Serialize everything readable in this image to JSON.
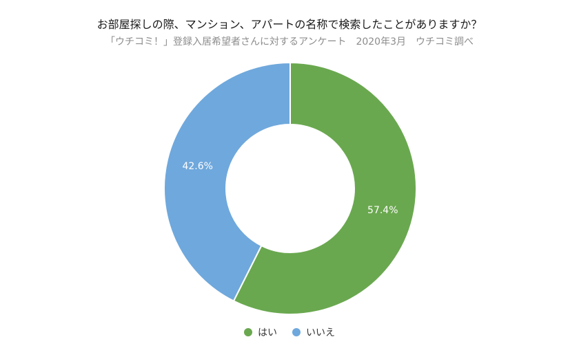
{
  "chart_data": {
    "type": "pie",
    "title": "お部屋探しの際、マンション、アパートの名称で検索したことがありますか？",
    "subtitle": "「ウチコミ！」登録入居希望者さんに対するアンケート　2020年3月　ウチコミ調べ",
    "categories": [
      "はい",
      "いいえ"
    ],
    "values": [
      57.4,
      42.6
    ],
    "data_labels": [
      "57.4%",
      "42.6%"
    ],
    "colors": [
      "#6aa84f",
      "#6fa8dc"
    ],
    "donut": true,
    "legend_position": "bottom"
  }
}
